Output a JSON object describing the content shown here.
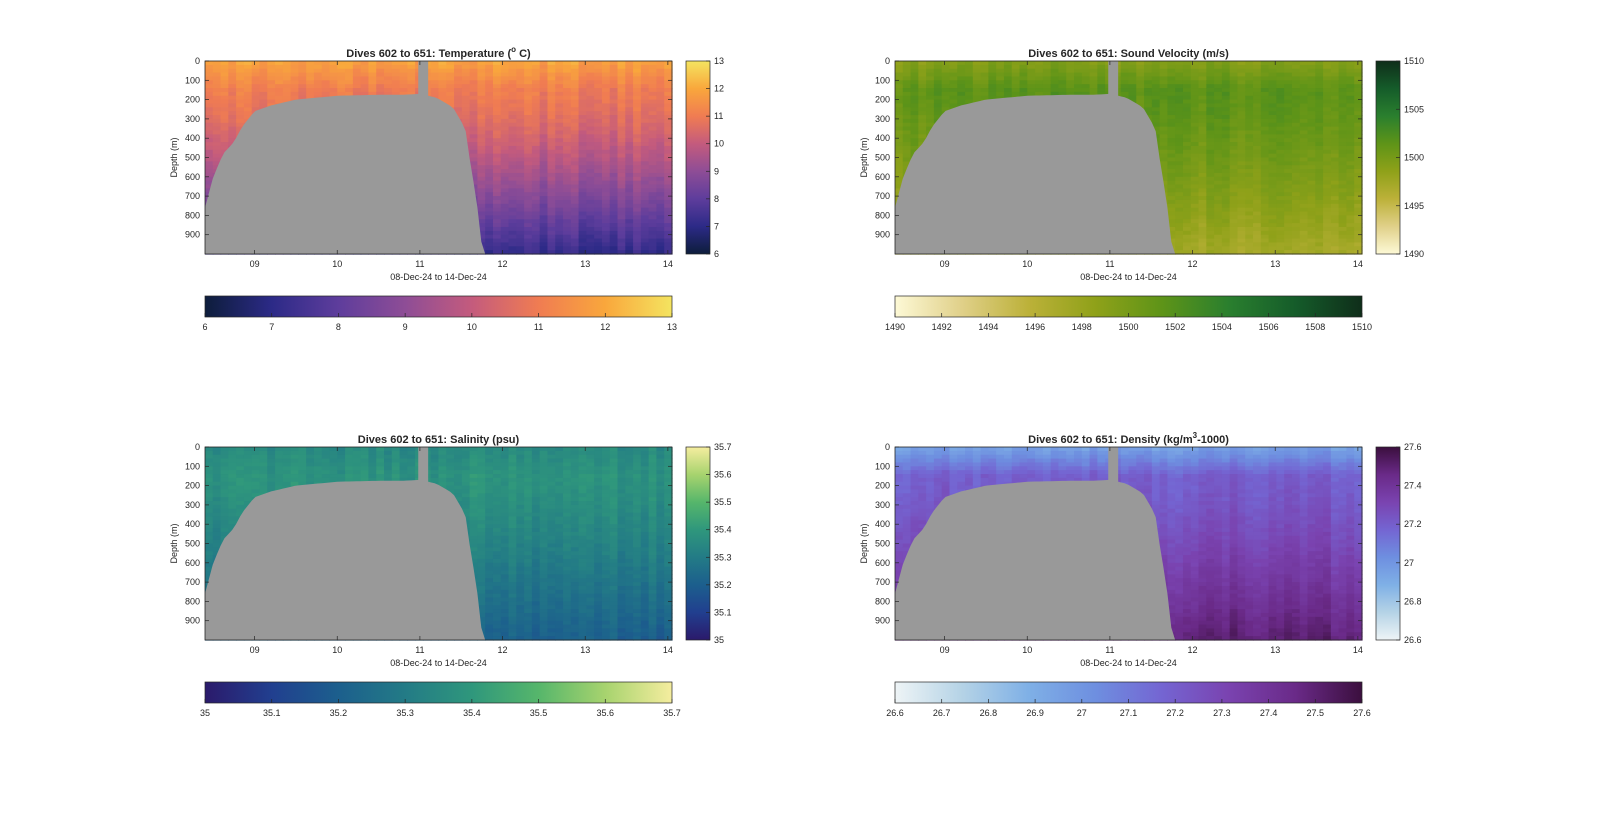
{
  "chart_data": [
    {
      "type": "heatmap",
      "title_main": "Dives 602 to 651: Temperature (",
      "title_sup": "o",
      "title_tail": " C)",
      "xlabel": "08-Dec-24 to 14-Dec-24",
      "ylabel": "Depth (m)",
      "xlim": [
        8.4,
        14.05
      ],
      "ylim": [
        0,
        1000
      ],
      "xticks": [
        "09",
        "10",
        "11",
        "12",
        "13",
        "14"
      ],
      "xtick_values": [
        9,
        10,
        11,
        12,
        13,
        14
      ],
      "yticks": [
        "0",
        "100",
        "200",
        "300",
        "400",
        "500",
        "600",
        "700",
        "800",
        "900"
      ],
      "ytick_values": [
        0,
        100,
        200,
        300,
        400,
        500,
        600,
        700,
        800,
        900
      ],
      "colorbar": {
        "min": 6,
        "max": 13,
        "ticks": [
          "6",
          "7",
          "8",
          "9",
          "10",
          "11",
          "12",
          "13"
        ]
      },
      "colorbar_h": {
        "ticks": [
          "6",
          "7",
          "8",
          "9",
          "10",
          "11",
          "12",
          "13"
        ]
      },
      "colormap": [
        "#0d1d3b",
        "#2c2a87",
        "#5e3d9c",
        "#8e4d96",
        "#c45b7d",
        "#f07c52",
        "#f9a73c",
        "#f4e460"
      ],
      "field": {
        "surface": 11.9,
        "mid": 11.0,
        "deep": 7.1
      }
    },
    {
      "type": "heatmap",
      "title_main": "Dives 602 to 651: Sound Velocity (m/s)",
      "title_sup": "",
      "title_tail": "",
      "xlabel": "08-Dec-24 to 14-Dec-24",
      "ylabel": "Depth (m)",
      "xlim": [
        8.4,
        14.05
      ],
      "ylim": [
        0,
        1000
      ],
      "xticks": [
        "09",
        "10",
        "11",
        "12",
        "13",
        "14"
      ],
      "xtick_values": [
        9,
        10,
        11,
        12,
        13,
        14
      ],
      "yticks": [
        "0",
        "100",
        "200",
        "300",
        "400",
        "500",
        "600",
        "700",
        "800",
        "900"
      ],
      "ytick_values": [
        0,
        100,
        200,
        300,
        400,
        500,
        600,
        700,
        800,
        900
      ],
      "colorbar": {
        "min": 1490,
        "max": 1510,
        "ticks": [
          "1490",
          "1495",
          "1500",
          "1505",
          "1510"
        ]
      },
      "colorbar_h": {
        "ticks": [
          "1490",
          "1492",
          "1494",
          "1496",
          "1498",
          "1500",
          "1502",
          "1504",
          "1506",
          "1508",
          "1510"
        ]
      },
      "colormap": [
        "#fdf9d6",
        "#e0d089",
        "#bcb139",
        "#8fa119",
        "#5e9418",
        "#2a7f2e",
        "#155c2a",
        "#0f2e1a"
      ],
      "field": {
        "surface": 1499.0,
        "mid": 1501.5,
        "deep": 1497.0
      }
    },
    {
      "type": "heatmap",
      "title_main": "Dives 602 to 651: Salinity (psu)",
      "title_sup": "",
      "title_tail": "",
      "xlabel": "08-Dec-24 to 14-Dec-24",
      "ylabel": "Depth (m)",
      "xlim": [
        8.4,
        14.05
      ],
      "ylim": [
        0,
        1000
      ],
      "xticks": [
        "09",
        "10",
        "11",
        "12",
        "13",
        "14"
      ],
      "xtick_values": [
        9,
        10,
        11,
        12,
        13,
        14
      ],
      "yticks": [
        "0",
        "100",
        "200",
        "300",
        "400",
        "500",
        "600",
        "700",
        "800",
        "900"
      ],
      "ytick_values": [
        0,
        100,
        200,
        300,
        400,
        500,
        600,
        700,
        800,
        900
      ],
      "colorbar": {
        "min": 35,
        "max": 35.7,
        "ticks": [
          "35",
          "35.1",
          "35.2",
          "35.3",
          "35.4",
          "35.5",
          "35.6",
          "35.7"
        ]
      },
      "colorbar_h": {
        "ticks": [
          "35",
          "35.1",
          "35.2",
          "35.3",
          "35.4",
          "35.5",
          "35.6",
          "35.7"
        ]
      },
      "colormap": [
        "#2b1a6b",
        "#213f8f",
        "#1c5f8d",
        "#237b86",
        "#2f977c",
        "#56b66b",
        "#a7d36e",
        "#f5ed9f"
      ],
      "field": {
        "surface": 35.35,
        "mid": 35.38,
        "deep": 35.2
      }
    },
    {
      "type": "heatmap",
      "title_main": "Dives 602 to 651: Density (kg/m",
      "title_sup": "3",
      "title_tail": "-1000)",
      "xlabel": "08-Dec-24 to 14-Dec-24",
      "ylabel": "Depth (m)",
      "xlim": [
        8.4,
        14.05
      ],
      "ylim": [
        0,
        1000
      ],
      "xticks": [
        "09",
        "10",
        "11",
        "12",
        "13",
        "14"
      ],
      "xtick_values": [
        9,
        10,
        11,
        12,
        13,
        14
      ],
      "yticks": [
        "0",
        "100",
        "200",
        "300",
        "400",
        "500",
        "600",
        "700",
        "800",
        "900"
      ],
      "ytick_values": [
        0,
        100,
        200,
        300,
        400,
        500,
        600,
        700,
        800,
        900
      ],
      "colorbar": {
        "min": 26.6,
        "max": 27.6,
        "ticks": [
          "26.6",
          "26.8",
          "27",
          "27.2",
          "27.4",
          "27.6"
        ]
      },
      "colorbar_h": {
        "ticks": [
          "26.6",
          "26.7",
          "26.8",
          "26.9",
          "27",
          "27.1",
          "27.2",
          "27.3",
          "27.4",
          "27.5",
          "27.6"
        ]
      },
      "colormap": [
        "#eef4f6",
        "#b5d3e6",
        "#7fb0e6",
        "#6e8fe0",
        "#7465d2",
        "#7a43b0",
        "#6a2a88",
        "#3b0f3e"
      ],
      "field": {
        "surface": 26.95,
        "mid": 27.2,
        "deep": 27.5
      }
    }
  ],
  "mask": {
    "color": "#999999",
    "seafloor": [
      {
        "x": 8.4,
        "depth": 760
      },
      {
        "x": 8.5,
        "depth": 600
      },
      {
        "x": 8.62,
        "depth": 480
      },
      {
        "x": 8.75,
        "depth": 420
      },
      {
        "x": 8.85,
        "depth": 340
      },
      {
        "x": 9.0,
        "depth": 260
      },
      {
        "x": 9.2,
        "depth": 230
      },
      {
        "x": 9.5,
        "depth": 200
      },
      {
        "x": 10.0,
        "depth": 180
      },
      {
        "x": 10.5,
        "depth": 175
      },
      {
        "x": 10.8,
        "depth": 175
      },
      {
        "x": 11.0,
        "depth": 170
      },
      {
        "x": 11.2,
        "depth": 190
      },
      {
        "x": 11.4,
        "depth": 240
      },
      {
        "x": 11.55,
        "depth": 350
      },
      {
        "x": 11.62,
        "depth": 560
      },
      {
        "x": 11.68,
        "depth": 700
      },
      {
        "x": 11.76,
        "depth": 1000
      }
    ],
    "gap": {
      "x0": 10.98,
      "x1": 11.1
    }
  }
}
